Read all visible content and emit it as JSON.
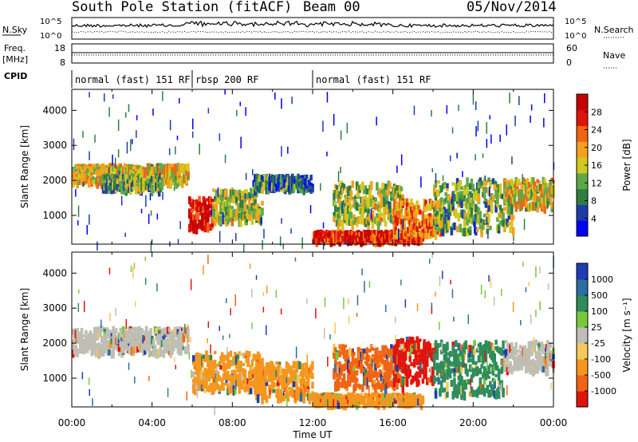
{
  "header": {
    "station": "South Pole Station (fitACF)",
    "beam": "Beam 00",
    "date": "05/Nov/2014"
  },
  "side_labels": {
    "nsky": "N.Sky",
    "nsky_hi": "10^5",
    "nsky_lo": "10^0",
    "nsearch": "N.Search",
    "nsearch_hi": "10^5",
    "nsearch_lo": "10^0",
    "freq_label1": "Freq.",
    "freq_label2": "[MHz]",
    "freq_hi": "18",
    "freq_lo": "8",
    "nave": "Nave",
    "nave_hi": "60",
    "nave_lo": "0",
    "cpid": "CPID"
  },
  "cpid_segments": [
    {
      "label": "normal (fast) 151 RF",
      "start": 0,
      "end": 6
    },
    {
      "label": "rbsp 200 RF",
      "start": 6,
      "end": 12
    },
    {
      "label": "normal (fast) 151 RF",
      "start": 12,
      "end": 24
    }
  ],
  "chart_data": [
    {
      "type": "heatmap",
      "name": "power",
      "xlabel": "",
      "ylabel": "Slant Range [km]",
      "xlim": [
        0,
        24
      ],
      "ylim": [
        180,
        4600
      ],
      "yticks": [
        1000,
        2000,
        3000,
        4000
      ],
      "colorbar": {
        "label": "Power [dB]",
        "ticks": [
          "4",
          "8",
          "12",
          "16",
          "20",
          "24",
          "28"
        ],
        "colors": [
          "#0000ff",
          "#1e3ca8",
          "#2d7f3f",
          "#5fa84a",
          "#d2c81e",
          "#f5a01e",
          "#f06414",
          "#e1140a",
          "#c80000"
        ]
      },
      "echo_regions": [
        {
          "t0": 0.0,
          "t1": 5.8,
          "r0": 2000,
          "r1": 2500,
          "level": 0.55
        },
        {
          "t0": 1.5,
          "t1": 4.5,
          "r0": 1800,
          "r1": 2200,
          "level": 0.35
        },
        {
          "t0": 5.8,
          "t1": 7.0,
          "r0": 700,
          "r1": 1600,
          "level": 0.95
        },
        {
          "t0": 7.0,
          "t1": 9.5,
          "r0": 900,
          "r1": 1800,
          "level": 0.45
        },
        {
          "t0": 9.0,
          "t1": 12.0,
          "r0": 1800,
          "r1": 2200,
          "level": 0.25
        },
        {
          "t0": 12.0,
          "t1": 17.5,
          "r0": 350,
          "r1": 600,
          "level": 0.9
        },
        {
          "t0": 13.0,
          "t1": 16.5,
          "r0": 800,
          "r1": 2000,
          "level": 0.45
        },
        {
          "t0": 16.0,
          "t1": 18.5,
          "r0": 500,
          "r1": 1500,
          "level": 0.7
        },
        {
          "t0": 18.0,
          "t1": 22.0,
          "r0": 600,
          "r1": 2100,
          "level": 0.4
        },
        {
          "t0": 21.5,
          "t1": 24.0,
          "r0": 1300,
          "r1": 2100,
          "level": 0.55
        }
      ]
    },
    {
      "type": "heatmap",
      "name": "velocity",
      "xlabel": "Time UT",
      "ylabel": "Slant Range [km]",
      "xlim": [
        0,
        24
      ],
      "ylim": [
        180,
        4600
      ],
      "xticks": [
        "00:00",
        "04:00",
        "08:00",
        "12:00",
        "16:00",
        "20:00",
        "00:00"
      ],
      "yticks": [
        1000,
        2000,
        3000,
        4000
      ],
      "colorbar": {
        "label": "Velocity [m s⁻¹]",
        "ticks": [
          "1000",
          "500",
          "100",
          "25",
          "-25",
          "-100",
          "-500",
          "-1000"
        ],
        "colors": [
          "#1e3cb4",
          "#2d6ea0",
          "#2d8c5a",
          "#78c83c",
          "#bebeb4",
          "#f5c85a",
          "#f5961e",
          "#f06414",
          "#e1140a"
        ]
      },
      "echo_regions": [
        {
          "t0": 0.0,
          "t1": 5.8,
          "r0": 1800,
          "r1": 2500,
          "color": "#bebeb4"
        },
        {
          "t0": 6.0,
          "t1": 9.5,
          "r0": 700,
          "r1": 1800,
          "color": "#f5961e"
        },
        {
          "t0": 9.0,
          "t1": 12.0,
          "r0": 500,
          "r1": 1500,
          "color": "#f5961e"
        },
        {
          "t0": 12.0,
          "t1": 17.5,
          "r0": 350,
          "r1": 600,
          "color": "#f5961e"
        },
        {
          "t0": 13.0,
          "t1": 16.5,
          "r0": 800,
          "r1": 2000,
          "color": "#f06414"
        },
        {
          "t0": 16.0,
          "t1": 18.0,
          "r0": 900,
          "r1": 2200,
          "color": "#e1140a"
        },
        {
          "t0": 18.0,
          "t1": 21.5,
          "r0": 600,
          "r1": 2100,
          "color": "#2d8c5a"
        },
        {
          "t0": 21.5,
          "t1": 24.0,
          "r0": 1300,
          "r1": 2100,
          "color": "#bebeb4"
        }
      ]
    }
  ]
}
